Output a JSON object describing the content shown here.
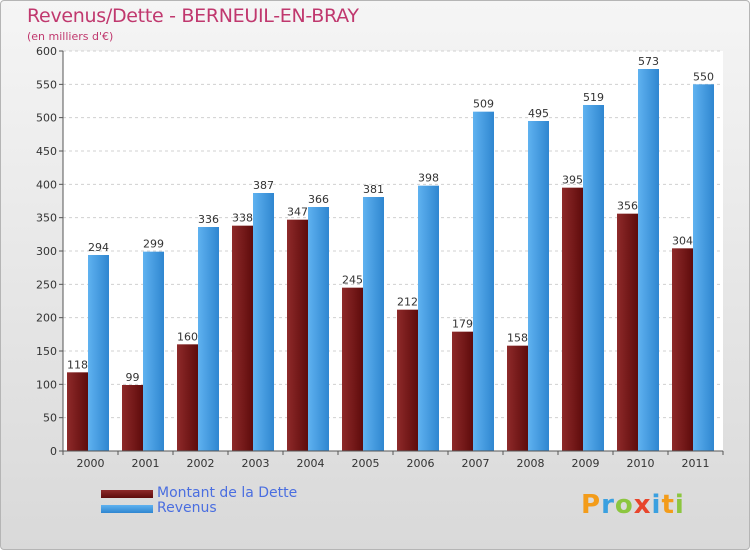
{
  "header": {
    "title": "Revenus/Dette - BERNEUIL-EN-BRAY",
    "subtitle": "(en milliers d'€)"
  },
  "chart_data": {
    "type": "bar",
    "categories": [
      "2000",
      "2001",
      "2002",
      "2003",
      "2004",
      "2005",
      "2006",
      "2007",
      "2008",
      "2009",
      "2010",
      "2011"
    ],
    "series": [
      {
        "name": "Montant de la Dette",
        "color": "#7a1a1a",
        "values": [
          118,
          99,
          160,
          338,
          347,
          245,
          212,
          179,
          158,
          395,
          356,
          304
        ]
      },
      {
        "name": "Revenus",
        "color": "#4ea3e4",
        "values": [
          294,
          299,
          336,
          387,
          366,
          381,
          398,
          509,
          495,
          519,
          573,
          550
        ]
      }
    ],
    "ylim": [
      0,
      600
    ],
    "yticks": [
      0,
      50,
      100,
      150,
      200,
      250,
      300,
      350,
      400,
      450,
      500,
      550,
      600
    ],
    "grid": true,
    "legend_position": "bottom-left"
  },
  "logo": {
    "text": "Proxiti",
    "letters": [
      {
        "char": "P",
        "color": "#f39c1a"
      },
      {
        "char": "r",
        "color": "#3aa0e0"
      },
      {
        "char": "o",
        "color": "#8cc63f"
      },
      {
        "char": "x",
        "color": "#e8452c"
      },
      {
        "char": "i",
        "color": "#3aa0e0"
      },
      {
        "char": "t",
        "color": "#f39c1a"
      },
      {
        "char": "i",
        "color": "#8cc63f"
      }
    ]
  }
}
